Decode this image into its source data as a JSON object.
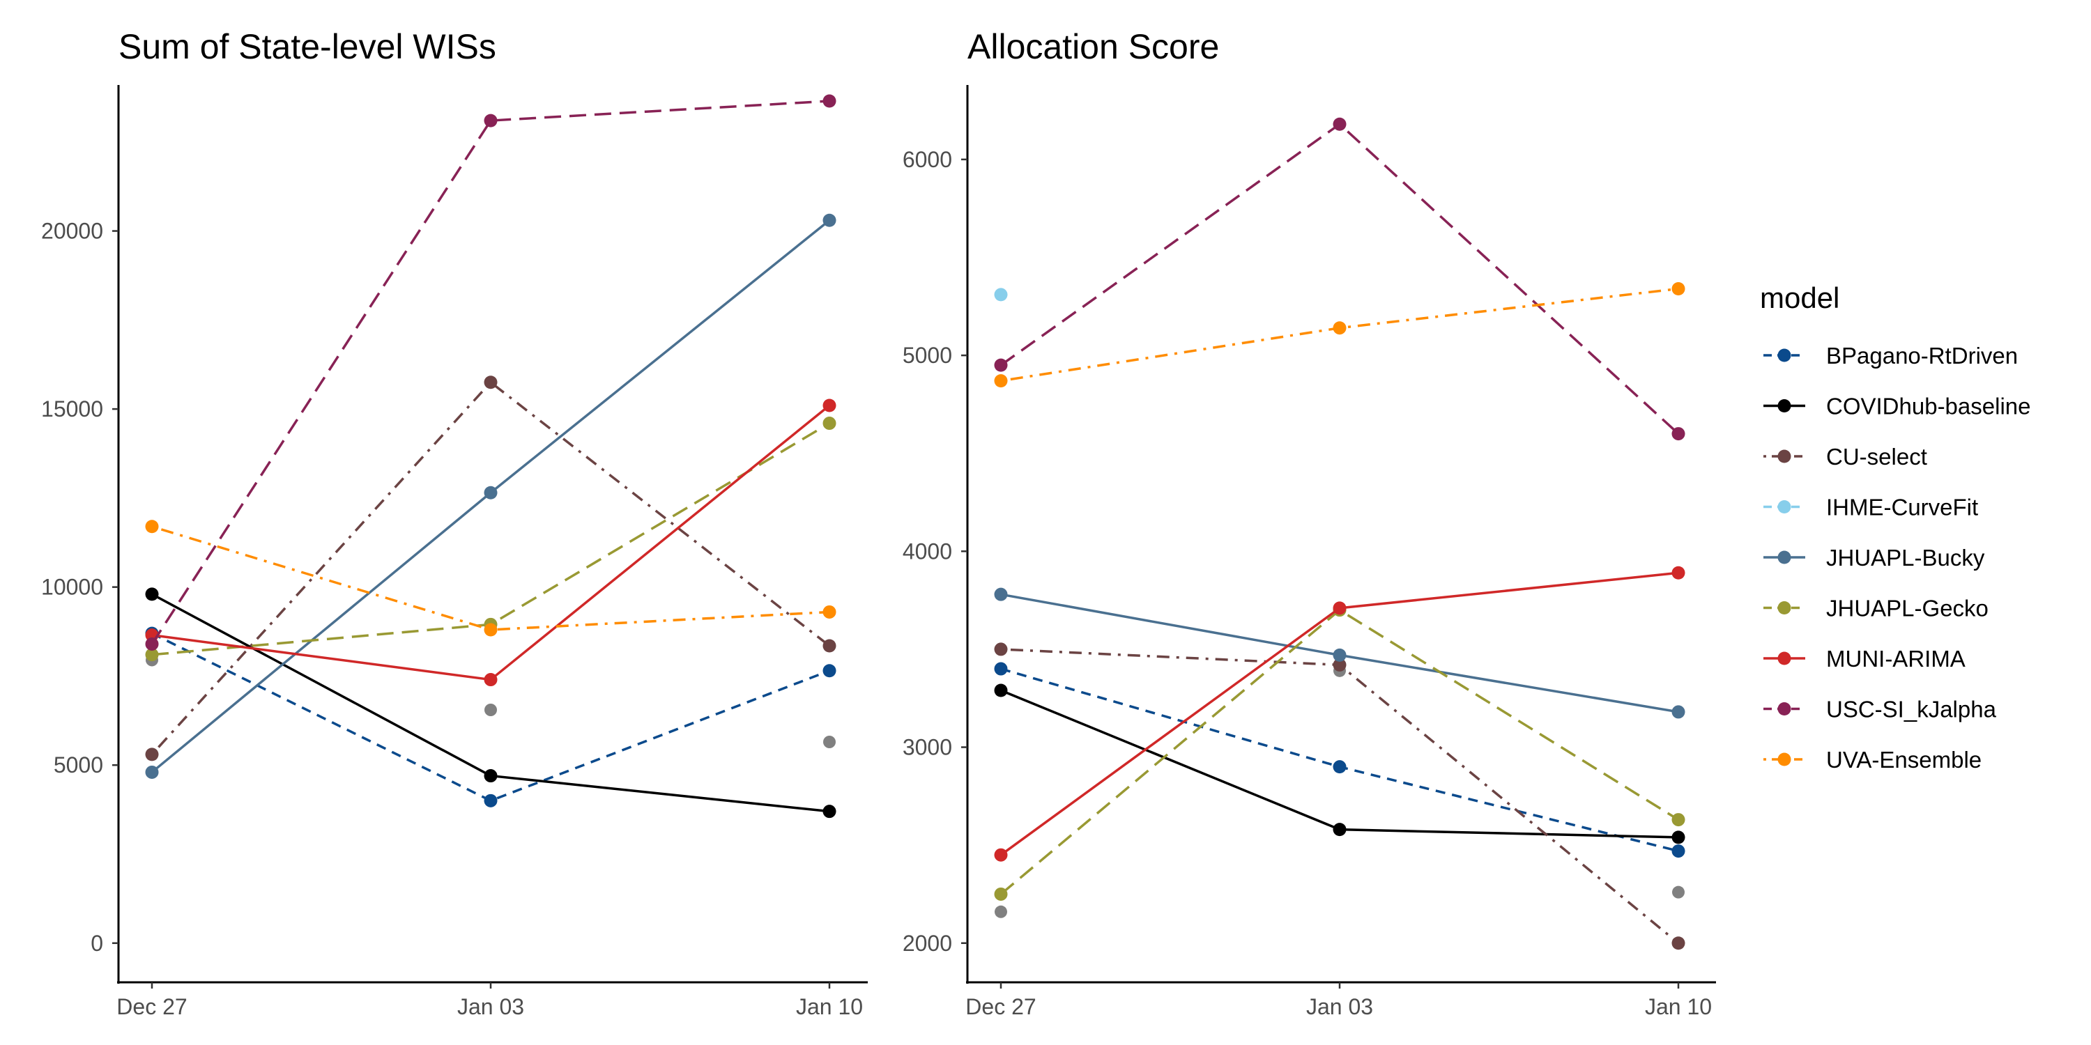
{
  "legend": {
    "title": "model",
    "entries": [
      {
        "name": "BPagano-RtDriven",
        "color": "#0b4a8c",
        "dash": "dashed"
      },
      {
        "name": "COVIDhub-baseline",
        "color": "#000000",
        "dash": "solid"
      },
      {
        "name": "CU-select",
        "color": "#6b4343",
        "dash": "dotdash"
      },
      {
        "name": "IHME-CurveFit",
        "color": "#87ceeb",
        "dash": "dashed"
      },
      {
        "name": "JHUAPL-Bucky",
        "color": "#4a7090",
        "dash": "solid"
      },
      {
        "name": "JHUAPL-Gecko",
        "color": "#999933",
        "dash": "longdash"
      },
      {
        "name": "MUNI-ARIMA",
        "color": "#d02828",
        "dash": "solid"
      },
      {
        "name": "USC-SI_kJalpha",
        "color": "#882255",
        "dash": "longdash"
      },
      {
        "name": "UVA-Ensemble",
        "color": "#ff8c00",
        "dash": "dotdash"
      }
    ]
  },
  "chart_data": [
    {
      "type": "line",
      "title": "Sum of State-level WISs",
      "xlabel": "",
      "ylabel": "",
      "categories": [
        "Dec 27",
        "Jan 03",
        "Jan 10"
      ],
      "yticks": [
        0,
        5000,
        10000,
        15000,
        20000
      ],
      "ylim": [
        -1100,
        24100
      ],
      "series": [
        {
          "name": "BPagano-RtDriven",
          "values": [
            8700,
            4000,
            7650
          ]
        },
        {
          "name": "COVIDhub-baseline",
          "values": [
            9800,
            4700,
            3700
          ]
        },
        {
          "name": "CU-select",
          "values": [
            5300,
            15750,
            8350
          ]
        },
        {
          "name": "IHME-CurveFit",
          "values": [
            null,
            null,
            null
          ]
        },
        {
          "name": "JHUAPL-Bucky",
          "values": [
            4800,
            12650,
            20300
          ]
        },
        {
          "name": "JHUAPL-Gecko",
          "values": [
            8100,
            8950,
            14600
          ]
        },
        {
          "name": "MUNI-ARIMA",
          "values": [
            8650,
            7400,
            15100
          ]
        },
        {
          "name": "USC-SI_kJalpha",
          "values": [
            8400,
            23100,
            23650
          ]
        },
        {
          "name": "UVA-Ensemble",
          "values": [
            11700,
            8800,
            9300
          ]
        }
      ],
      "extra_points": [
        {
          "x": "Dec 27",
          "y": 7950,
          "color": "#808080"
        },
        {
          "x": "Jan 03",
          "y": 6550,
          "color": "#808080"
        },
        {
          "x": "Jan 10",
          "y": 5650,
          "color": "#808080"
        }
      ]
    },
    {
      "type": "line",
      "title": "Allocation Score",
      "xlabel": "",
      "ylabel": "",
      "categories": [
        "Dec 27",
        "Jan 03",
        "Jan 10"
      ],
      "yticks": [
        2000,
        3000,
        4000,
        5000,
        6000
      ],
      "ylim": [
        1800,
        6380
      ],
      "series": [
        {
          "name": "BPagano-RtDriven",
          "values": [
            3400,
            2900,
            2470
          ]
        },
        {
          "name": "COVIDhub-baseline",
          "values": [
            3290,
            2580,
            2540
          ]
        },
        {
          "name": "CU-select",
          "values": [
            3500,
            3420,
            2000
          ]
        },
        {
          "name": "IHME-CurveFit",
          "values": [
            5310,
            null,
            null
          ]
        },
        {
          "name": "JHUAPL-Bucky",
          "values": [
            3780,
            3470,
            3180
          ]
        },
        {
          "name": "JHUAPL-Gecko",
          "values": [
            2250,
            3700,
            2630
          ]
        },
        {
          "name": "MUNI-ARIMA",
          "values": [
            2450,
            3710,
            3890
          ]
        },
        {
          "name": "USC-SI_kJalpha",
          "values": [
            4950,
            6180,
            4600
          ]
        },
        {
          "name": "UVA-Ensemble",
          "values": [
            4870,
            5140,
            5340
          ]
        }
      ],
      "extra_points": [
        {
          "x": "Dec 27",
          "y": 2160,
          "color": "#808080"
        },
        {
          "x": "Jan 03",
          "y": 3390,
          "color": "#808080"
        },
        {
          "x": "Jan 10",
          "y": 2260,
          "color": "#808080"
        }
      ]
    }
  ]
}
